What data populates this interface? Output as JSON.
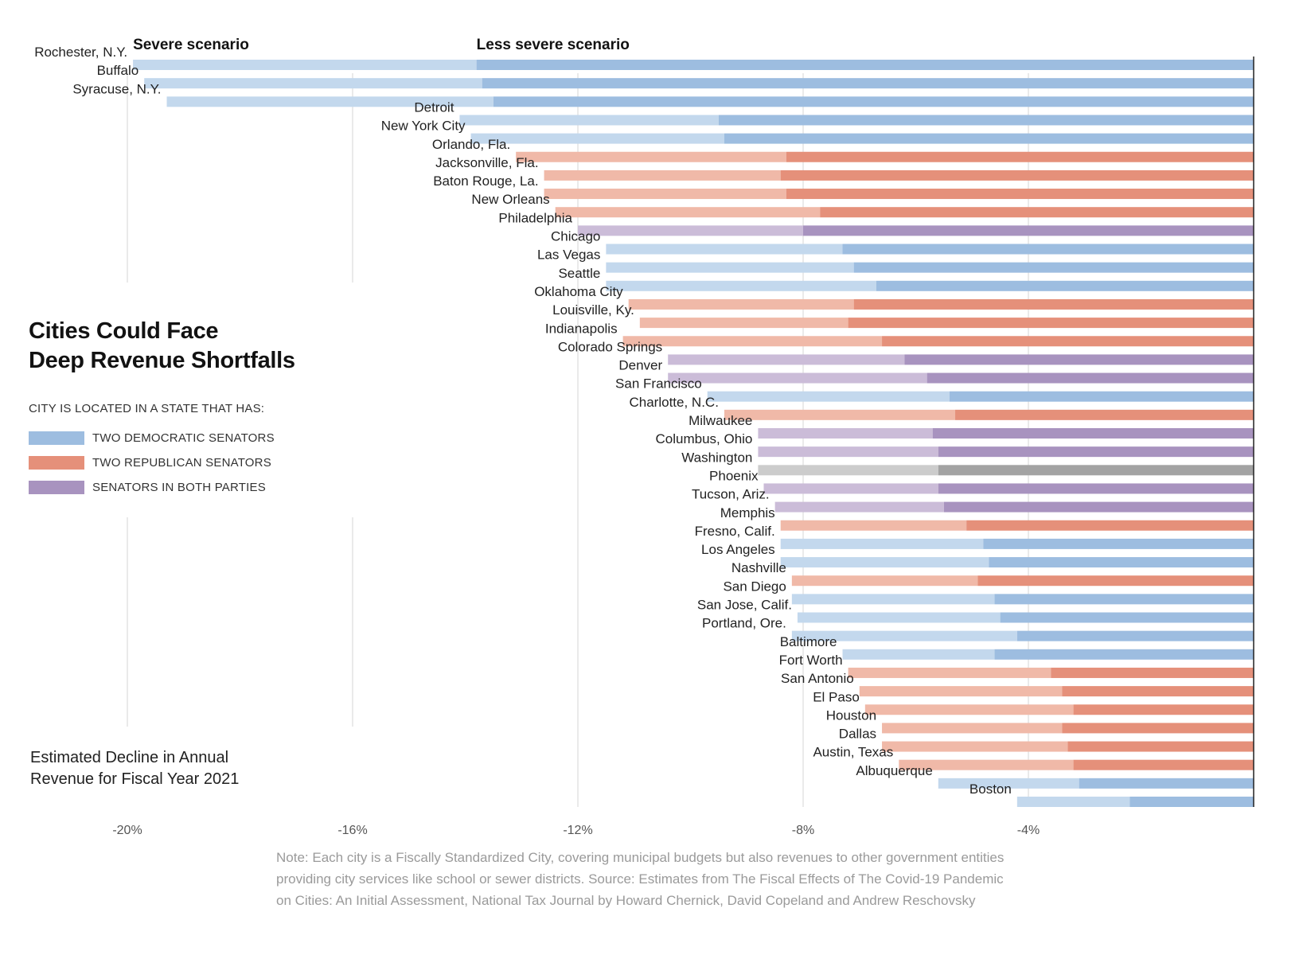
{
  "title_line1": "Cities Could Face",
  "title_line2": "Deep Revenue Shortfalls",
  "legend": {
    "heading": "CITY IS LOCATED IN A STATE THAT HAS:",
    "items": [
      {
        "label": "TWO DEMOCRATIC SENATORS",
        "color": "#9dbde0"
      },
      {
        "label": "TWO REPUBLICAN SENATORS",
        "color": "#e5907a"
      },
      {
        "label": "SENATORS IN BOTH PARTIES",
        "color": "#a893bf"
      }
    ]
  },
  "subtitle_line1": "Estimated Decline in Annual",
  "subtitle_line2": "Revenue for Fiscal Year 2021",
  "note": "Note: Each city is a Fiscally Standardized City, covering municipal budgets but also revenues to other government entities providing city services like school or sewer districts. Source: Estimates from The Fiscal Effects of The Covid-19 Pandemic on Cities: An Initial Assessment, National Tax Journal by Howard Chernick, David Copeland and Andrew Reschovsky",
  "chart_data": {
    "type": "bar",
    "orientation": "horizontal",
    "x_ticks": [
      -20,
      -16,
      -12,
      -8,
      -4
    ],
    "x_tick_labels": [
      "-20%",
      "-16%",
      "-12%",
      "-8%",
      "-4%"
    ],
    "xlim": [
      -20.1,
      0
    ],
    "series_names": [
      "Severe scenario",
      "Less severe scenario"
    ],
    "party_colors": {
      "dem": {
        "severe": "#c3d8ed",
        "less": "#9dbde0"
      },
      "rep": {
        "severe": "#f0b9a8",
        "less": "#e5907a"
      },
      "mixed": {
        "severe": "#cbbcd8",
        "less": "#a893bf"
      },
      "none": {
        "severe": "#cccccc",
        "less": "#a3a3a3"
      }
    },
    "cities": [
      {
        "name": "Rochester, N.Y.",
        "party": "dem",
        "severe": -19.9,
        "less": -13.8
      },
      {
        "name": "Buffalo",
        "party": "dem",
        "severe": -19.7,
        "less": -13.7
      },
      {
        "name": "Syracuse, N.Y.",
        "party": "dem",
        "severe": -19.3,
        "less": -13.5
      },
      {
        "name": "Detroit",
        "party": "dem",
        "severe": -14.1,
        "less": -9.5
      },
      {
        "name": "New York City",
        "party": "dem",
        "severe": -13.9,
        "less": -9.4
      },
      {
        "name": "Orlando, Fla.",
        "party": "rep",
        "severe": -13.1,
        "less": -8.3
      },
      {
        "name": "Jacksonville, Fla.",
        "party": "rep",
        "severe": -12.6,
        "less": -8.4
      },
      {
        "name": "Baton Rouge, La.",
        "party": "rep",
        "severe": -12.6,
        "less": -8.3
      },
      {
        "name": "New Orleans",
        "party": "rep",
        "severe": -12.4,
        "less": -7.7
      },
      {
        "name": "Philadelphia",
        "party": "mixed",
        "severe": -12.0,
        "less": -8.0
      },
      {
        "name": "Chicago",
        "party": "dem",
        "severe": -11.5,
        "less": -7.3
      },
      {
        "name": "Las Vegas",
        "party": "dem",
        "severe": -11.5,
        "less": -7.1
      },
      {
        "name": "Seattle",
        "party": "dem",
        "severe": -11.5,
        "less": -6.7
      },
      {
        "name": "Oklahoma City",
        "party": "rep",
        "severe": -11.1,
        "less": -7.1
      },
      {
        "name": "Louisville, Ky.",
        "party": "rep",
        "severe": -10.9,
        "less": -7.2
      },
      {
        "name": "Indianapolis",
        "party": "rep",
        "severe": -11.2,
        "less": -6.6
      },
      {
        "name": "Colorado Springs",
        "party": "mixed",
        "severe": -10.4,
        "less": -6.2
      },
      {
        "name": "Denver",
        "party": "mixed",
        "severe": -10.4,
        "less": -5.8
      },
      {
        "name": "San Francisco",
        "party": "dem",
        "severe": -9.7,
        "less": -5.4
      },
      {
        "name": "Charlotte, N.C.",
        "party": "rep",
        "severe": -9.4,
        "less": -5.3
      },
      {
        "name": "Milwaukee",
        "party": "mixed",
        "severe": -8.8,
        "less": -5.7
      },
      {
        "name": "Columbus, Ohio",
        "party": "mixed",
        "severe": -8.8,
        "less": -5.6
      },
      {
        "name": "Washington",
        "party": "none",
        "severe": -8.8,
        "less": -5.6
      },
      {
        "name": "Phoenix",
        "party": "mixed",
        "severe": -8.7,
        "less": -5.6
      },
      {
        "name": "Tucson, Ariz.",
        "party": "mixed",
        "severe": -8.5,
        "less": -5.5
      },
      {
        "name": "Memphis",
        "party": "rep",
        "severe": -8.4,
        "less": -5.1
      },
      {
        "name": "Fresno, Calif.",
        "party": "dem",
        "severe": -8.4,
        "less": -4.8
      },
      {
        "name": "Los Angeles",
        "party": "dem",
        "severe": -8.4,
        "less": -4.7
      },
      {
        "name": "Nashville",
        "party": "rep",
        "severe": -8.2,
        "less": -4.9
      },
      {
        "name": "San Diego",
        "party": "dem",
        "severe": -8.2,
        "less": -4.6
      },
      {
        "name": "San Jose, Calif.",
        "party": "dem",
        "severe": -8.1,
        "less": -4.5
      },
      {
        "name": "Portland, Ore.",
        "party": "dem",
        "severe": -8.2,
        "less": -4.2
      },
      {
        "name": "Baltimore",
        "party": "dem",
        "severe": -7.3,
        "less": -4.6
      },
      {
        "name": "Fort Worth",
        "party": "rep",
        "severe": -7.2,
        "less": -3.6
      },
      {
        "name": "San Antonio",
        "party": "rep",
        "severe": -7.0,
        "less": -3.4
      },
      {
        "name": "El Paso",
        "party": "rep",
        "severe": -6.9,
        "less": -3.2
      },
      {
        "name": "Houston",
        "party": "rep",
        "severe": -6.6,
        "less": -3.4
      },
      {
        "name": "Dallas",
        "party": "rep",
        "severe": -6.6,
        "less": -3.3
      },
      {
        "name": "Austin, Texas",
        "party": "rep",
        "severe": -6.3,
        "less": -3.2
      },
      {
        "name": "Albuquerque",
        "party": "dem",
        "severe": -5.6,
        "less": -3.1
      },
      {
        "name": "Boston",
        "party": "dem",
        "severe": -4.2,
        "less": -2.2
      }
    ]
  }
}
